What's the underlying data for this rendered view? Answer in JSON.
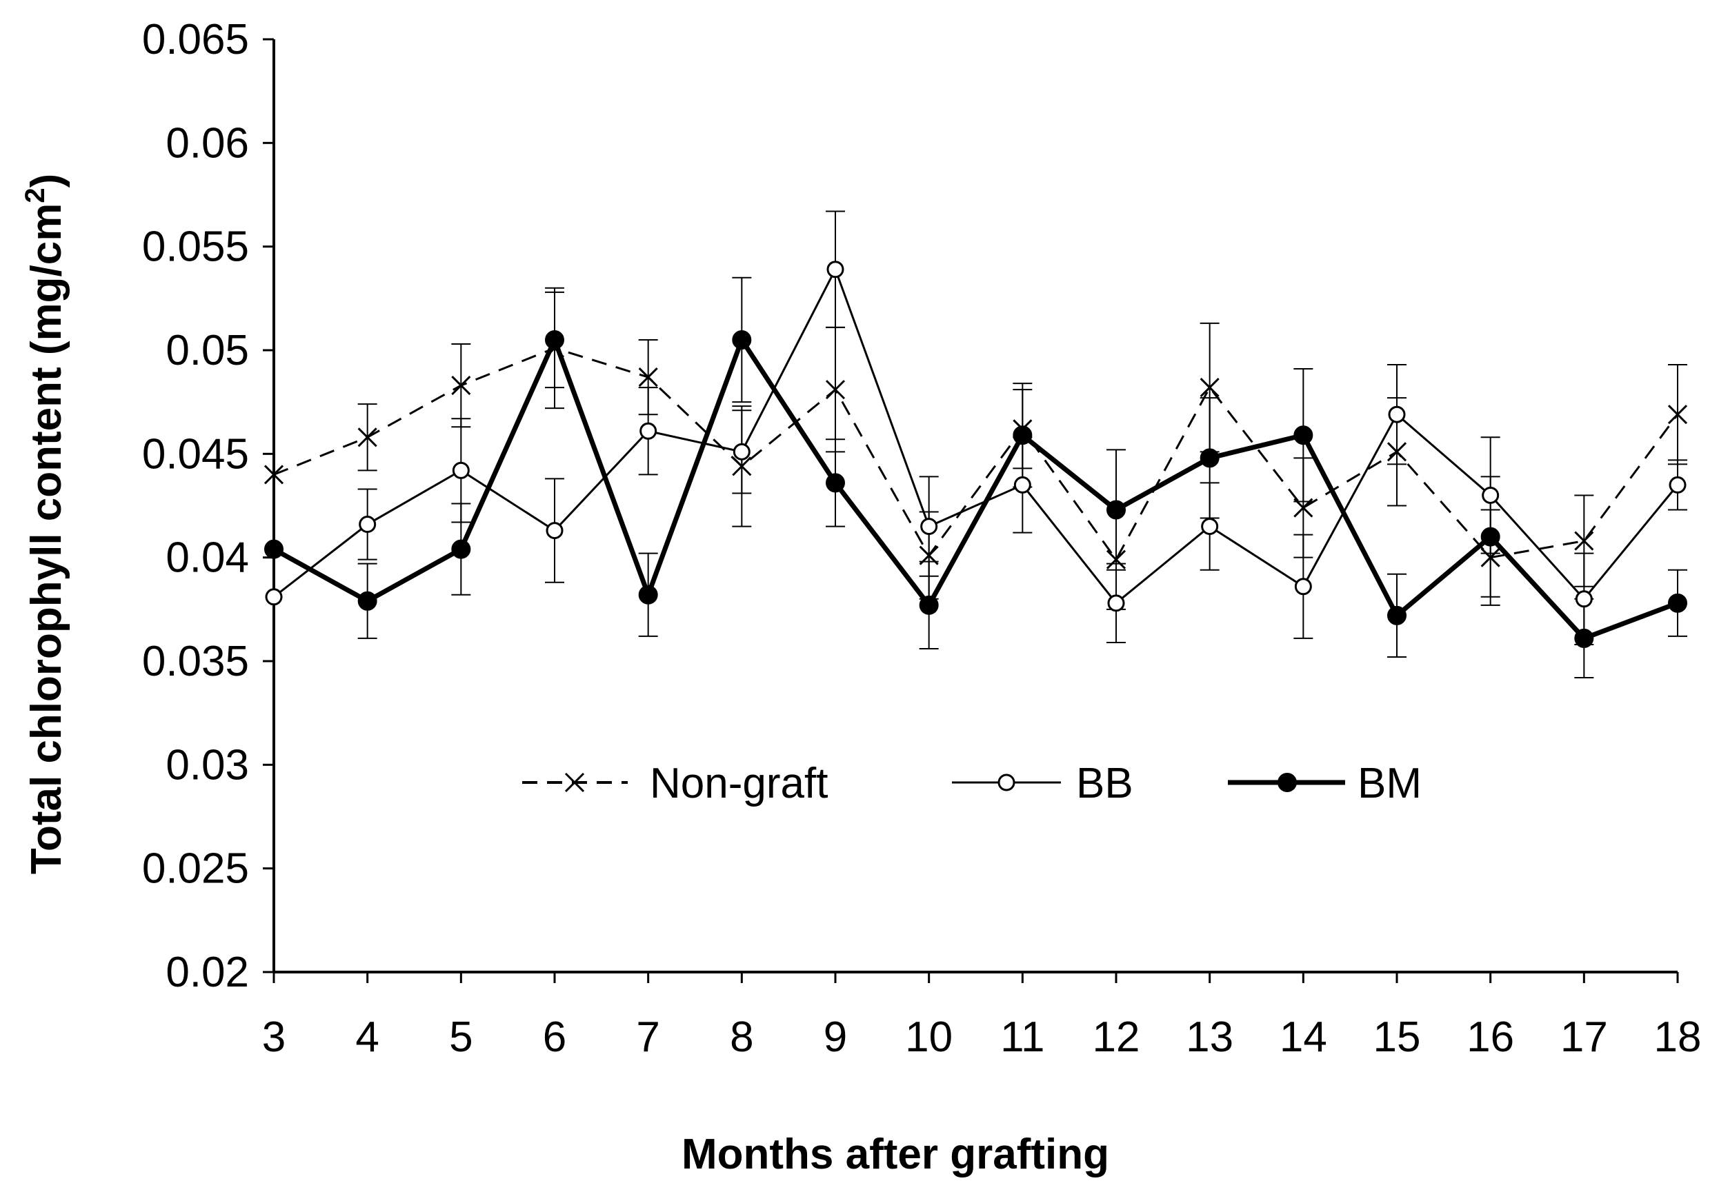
{
  "chart_data": {
    "type": "line",
    "title": "",
    "xlabel": "Months after grafting",
    "ylabel": "Total chlorophyll content (mg/cm",
    "ylabel_superscript": "2",
    "ylabel_suffix": ")",
    "x": [
      3,
      4,
      5,
      6,
      7,
      8,
      9,
      10,
      11,
      12,
      13,
      14,
      15,
      16,
      17,
      18
    ],
    "x_tick_labels": [
      "3",
      "4",
      "5",
      "6",
      "7",
      "8",
      "9",
      "10",
      "11",
      "12",
      "13",
      "14",
      "15",
      "16",
      "17",
      "18"
    ],
    "ylim": [
      0.02,
      0.065
    ],
    "y_ticks": [
      0.02,
      0.025,
      0.03,
      0.035,
      0.04,
      0.045,
      0.05,
      0.055,
      0.06,
      0.065
    ],
    "y_tick_labels": [
      "0.02",
      "0.025",
      "0.03",
      "0.035",
      "0.04",
      "0.045",
      "0.05",
      "0.055",
      "0.06",
      "0.065"
    ],
    "grid": false,
    "legend_position": "center",
    "series": [
      {
        "name": "Non-graft",
        "style": "dashed",
        "marker": "x",
        "values": [
          0.044,
          0.0458,
          0.0483,
          0.0501,
          0.0487,
          0.0444,
          0.0481,
          0.0401,
          0.0462,
          0.0399,
          0.0482,
          0.0424,
          0.0451,
          0.04,
          0.0408,
          0.0469
        ],
        "errors": [
          0.0,
          0.0016,
          0.002,
          0.0029,
          0.0018,
          0.0029,
          0.003,
          0.0021,
          0.0019,
          0.0024,
          0.0031,
          0.0024,
          0.0026,
          0.0023,
          0.0022,
          0.0024
        ]
      },
      {
        "name": "BB",
        "style": "solid",
        "marker": "open-circle",
        "values": [
          0.0381,
          0.0416,
          0.0442,
          0.0413,
          0.0461,
          0.0451,
          0.0539,
          0.0415,
          0.0435,
          0.0378,
          0.0415,
          0.0386,
          0.0469,
          0.043,
          0.038,
          0.0435
        ],
        "errors": [
          0.0,
          0.0017,
          0.0025,
          0.0025,
          0.0021,
          0.002,
          0.0028,
          0.0024,
          0.0023,
          0.0019,
          0.0021,
          0.0025,
          0.0024,
          0.0028,
          0.0022,
          0.0012
        ]
      },
      {
        "name": "BM",
        "style": "bold",
        "marker": "filled-circle",
        "values": [
          0.0404,
          0.0379,
          0.0404,
          0.0505,
          0.0382,
          0.0505,
          0.0436,
          0.0377,
          0.0459,
          0.0423,
          0.0448,
          0.0459,
          0.0372,
          0.041,
          0.0361,
          0.0378
        ],
        "errors": [
          0.0,
          0.0018,
          0.0022,
          0.0023,
          0.002,
          0.003,
          0.0021,
          0.0021,
          0.0025,
          0.0029,
          0.0029,
          0.0032,
          0.002,
          0.0029,
          0.0019,
          0.0016
        ]
      }
    ]
  }
}
